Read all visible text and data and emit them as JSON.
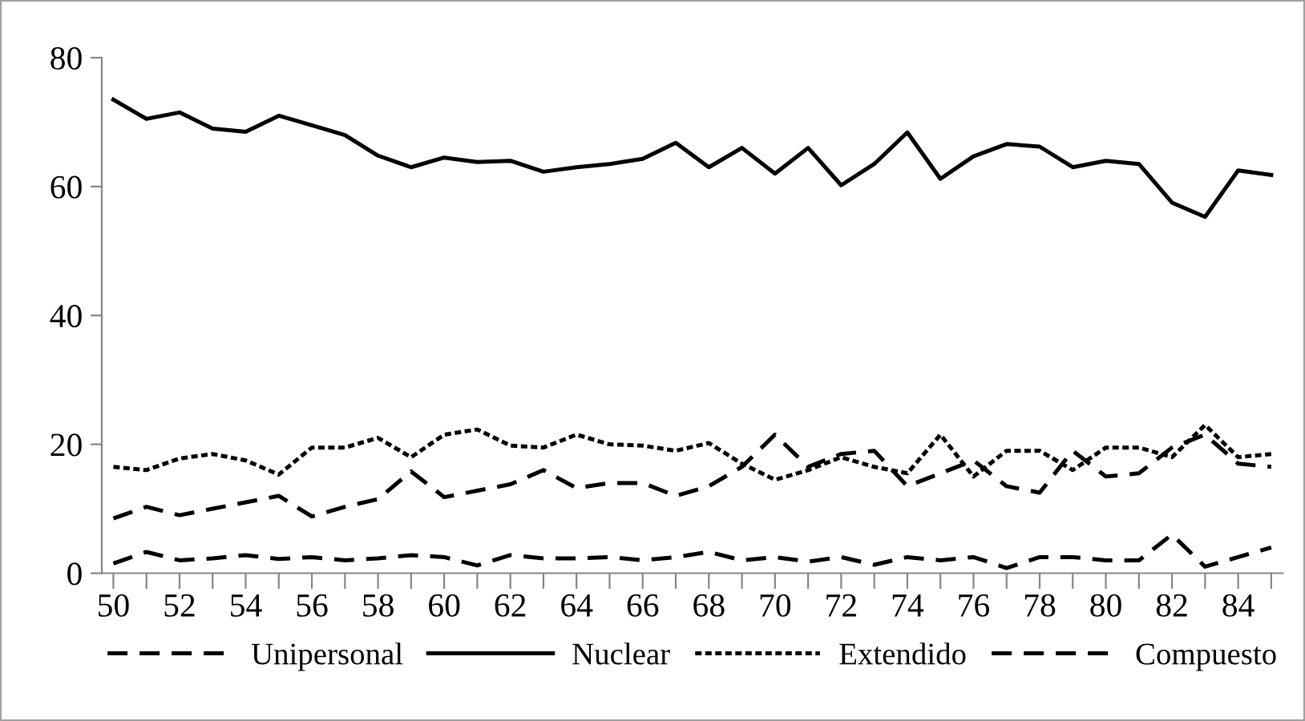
{
  "chart_data": {
    "type": "line",
    "x": [
      50,
      51,
      52,
      53,
      54,
      55,
      56,
      57,
      58,
      59,
      60,
      61,
      62,
      63,
      64,
      65,
      66,
      67,
      68,
      69,
      70,
      71,
      72,
      73,
      74,
      75,
      76,
      77,
      78,
      79,
      80,
      81,
      82,
      83,
      84,
      85
    ],
    "series": [
      {
        "name": "Unipersonal",
        "color": "#000000",
        "line_style": "dashed",
        "values": [
          8.5,
          10.3,
          9,
          10,
          11,
          12,
          8.8,
          10.3,
          11.5,
          15.8,
          11.8,
          12.8,
          13.8,
          16,
          13.2,
          14,
          14,
          12,
          13.5,
          16.5,
          21.5,
          16.5,
          18.5,
          19,
          13.5,
          15.5,
          17.5,
          13.5,
          12.5,
          19,
          15,
          15.5,
          19.5,
          21.5,
          17,
          16.5
        ]
      },
      {
        "name": "Nuclear",
        "color": "#000000",
        "line_style": "solid",
        "values": [
          73.5,
          70.5,
          71.5,
          69,
          68.5,
          71,
          69.5,
          68,
          64.8,
          63,
          64.5,
          63.8,
          64,
          62.3,
          63,
          63.5,
          64.3,
          66.8,
          63,
          66,
          62,
          66,
          60.2,
          63.5,
          68.4,
          61.2,
          64.7,
          66.6,
          66.2,
          63,
          64,
          63.5,
          57.5,
          55.3,
          62.5,
          61.8
        ]
      },
      {
        "name": "Extendido",
        "color": "#000000",
        "line_style": "dotted",
        "values": [
          16.5,
          16,
          17.8,
          18.5,
          17.5,
          15.3,
          19.5,
          19.5,
          21,
          18,
          21.5,
          22.3,
          19.8,
          19.5,
          21.5,
          20,
          19.8,
          19,
          20.2,
          17,
          14.5,
          16,
          18,
          16.5,
          15.5,
          21.5,
          15,
          19,
          19,
          16,
          19.5,
          19.5,
          18,
          23,
          18,
          18.5
        ]
      },
      {
        "name": "Compuesto",
        "color": "#000000",
        "line_style": "dashed",
        "values": [
          1.5,
          3.3,
          2,
          2.3,
          2.8,
          2.2,
          2.5,
          2,
          2.3,
          2.8,
          2.5,
          1.2,
          2.8,
          2.3,
          2.3,
          2.5,
          2,
          2.5,
          3.3,
          2,
          2.5,
          1.8,
          2.5,
          1.3,
          2.5,
          2,
          2.5,
          0.8,
          2.5,
          2.5,
          2,
          2,
          6,
          1,
          2.5,
          4
        ]
      }
    ],
    "xlim": [
      49.65,
      85.35
    ],
    "xticks": [
      50,
      {
        "value": 51,
        "label": null
      },
      52,
      {
        "value": 53,
        "label": null
      },
      54,
      {
        "value": 55,
        "label": null
      },
      56,
      {
        "value": 57,
        "label": null
      },
      58,
      {
        "value": 59,
        "label": null
      },
      60,
      {
        "value": 61,
        "label": null
      },
      62,
      {
        "value": 63,
        "label": null
      },
      64,
      {
        "value": 65,
        "label": null
      },
      66,
      {
        "value": 67,
        "label": null
      },
      68,
      {
        "value": 69,
        "label": null
      },
      70,
      {
        "value": 71,
        "label": null
      },
      72,
      {
        "value": 73,
        "label": null
      },
      74,
      {
        "value": 75,
        "label": null
      },
      76,
      {
        "value": 77,
        "label": null
      },
      78,
      {
        "value": 79,
        "label": null
      },
      80,
      {
        "value": 81,
        "label": null
      },
      82,
      {
        "value": 83,
        "label": null
      },
      84,
      {
        "value": 85,
        "label": null
      }
    ],
    "ylim": [
      0,
      80
    ],
    "yticks": [
      0,
      20,
      40,
      60,
      80
    ],
    "grid": false,
    "legend": "bottom",
    "marker": "none"
  }
}
